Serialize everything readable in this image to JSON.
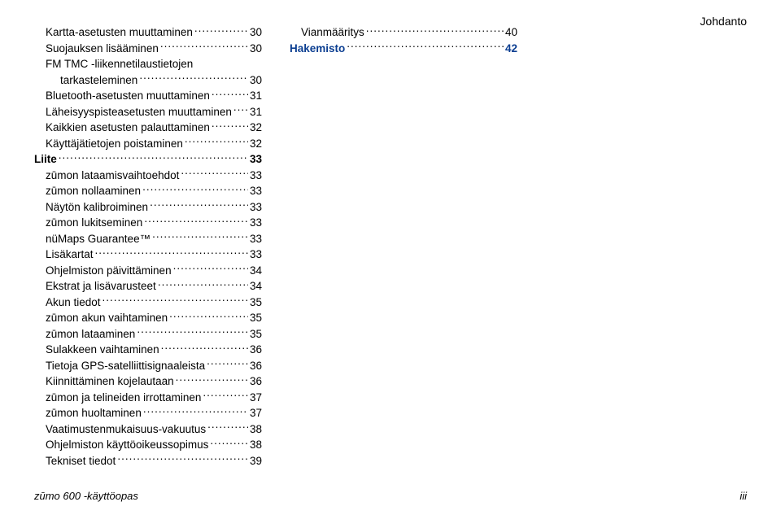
{
  "header": {
    "section": "Johdanto"
  },
  "col1": [
    {
      "label": "Kartta-asetusten muuttaminen",
      "page": "30",
      "indent": true
    },
    {
      "label": "Suojauksen lisääminen",
      "page": "30",
      "indent": true
    },
    {
      "label": "FM TMC -liikennetilaustietojen",
      "indent": true,
      "noPage": true
    },
    {
      "label": "tarkasteleminen",
      "page": "30",
      "indent": true,
      "extraIndent": true
    },
    {
      "label": "Bluetooth-asetusten muuttaminen",
      "page": "31",
      "indent": true
    },
    {
      "label": "Läheisyyspisteasetusten muuttaminen",
      "page": "31",
      "indent": true
    },
    {
      "label": "Kaikkien asetusten palauttaminen",
      "page": "32",
      "indent": true
    },
    {
      "label": "Käyttäjätietojen poistaminen",
      "page": "32",
      "indent": true
    },
    {
      "label": "Liite",
      "page": "33",
      "bold": true
    },
    {
      "label": "zūmon lataamisvaihtoehdot",
      "page": "33",
      "indent": true
    },
    {
      "label": "zūmon nollaaminen",
      "page": "33",
      "indent": true
    },
    {
      "label": "Näytön kalibroiminen",
      "page": "33",
      "indent": true
    },
    {
      "label": "zūmon lukitseminen",
      "page": "33",
      "indent": true
    },
    {
      "label": "nüMaps Guarantee™",
      "page": "33",
      "indent": true
    },
    {
      "label": "Lisäkartat",
      "page": "33",
      "indent": true
    },
    {
      "label": "Ohjelmiston päivittäminen",
      "page": "34",
      "indent": true
    },
    {
      "label": "Ekstrat ja lisävarusteet",
      "page": "34",
      "indent": true
    },
    {
      "label": "Akun tiedot",
      "page": "35",
      "indent": true
    },
    {
      "label": "zūmon akun vaihtaminen",
      "page": "35",
      "indent": true
    },
    {
      "label": "zūmon lataaminen",
      "page": "35",
      "indent": true
    },
    {
      "label": "Sulakkeen vaihtaminen",
      "page": "36",
      "indent": true
    },
    {
      "label": "Tietoja GPS-satelliittisignaaleista",
      "page": "36",
      "indent": true
    },
    {
      "label": "Kiinnittäminen kojelautaan",
      "page": "36",
      "indent": true
    },
    {
      "label": "zūmon ja telineiden irrottaminen",
      "page": "37",
      "indent": true
    },
    {
      "label": "zūmon huoltaminen",
      "page": "37",
      "indent": true
    },
    {
      "label": "Vaatimustenmukaisuus-vakuutus",
      "page": "38",
      "indent": true
    },
    {
      "label": "Ohjelmiston käyttöoikeussopimus",
      "page": "38",
      "indent": true
    },
    {
      "label": "Tekniset tiedot",
      "page": "39",
      "indent": true
    }
  ],
  "col2": [
    {
      "label": "Vianmääritys",
      "page": "40",
      "indent": true
    },
    {
      "label": "Hakemisto",
      "page": "42",
      "bold": true,
      "blue": true
    }
  ],
  "footer": {
    "left": "zūmo 600 -käyttöopas",
    "right": "iii"
  },
  "colors": {
    "text": "#000000",
    "blue": "#0b3e91",
    "background": "#ffffff"
  }
}
